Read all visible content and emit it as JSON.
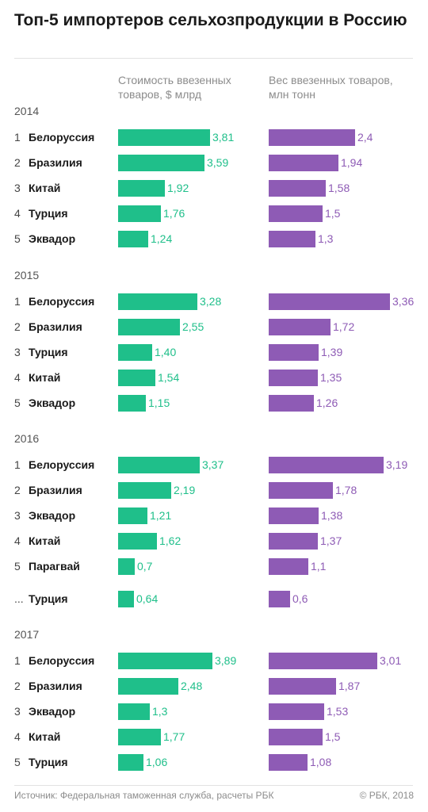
{
  "title": "Топ-5 импортеров сельхозпродукции в Россию",
  "headers": {
    "value": "Стоимость ввезенных товаров, $ млрд",
    "weight": "Вес ввезенных товаров, млн тонн"
  },
  "colors": {
    "value": "#1fbf8a",
    "weight": "#8e5bb5"
  },
  "chart_data": {
    "type": "bar",
    "title": "Топ-5 импортеров сельхозпродукции в Россию",
    "series": [
      {
        "name": "Стоимость ввезенных товаров, $ млрд",
        "key": "value"
      },
      {
        "name": "Вес ввезенных товаров, млн тонн",
        "key": "weight"
      }
    ],
    "groups": [
      {
        "year": "2014",
        "rows": [
          {
            "rank": "1",
            "country": "Белоруссия",
            "value": 3.81,
            "value_label": "3,81",
            "weight": 2.4,
            "weight_label": "2,4"
          },
          {
            "rank": "2",
            "country": "Бразилия",
            "value": 3.59,
            "value_label": "3,59",
            "weight": 1.94,
            "weight_label": "1,94"
          },
          {
            "rank": "3",
            "country": "Китай",
            "value": 1.92,
            "value_label": "1,92",
            "weight": 1.58,
            "weight_label": "1,58"
          },
          {
            "rank": "4",
            "country": "Турция",
            "value": 1.76,
            "value_label": "1,76",
            "weight": 1.5,
            "weight_label": "1,5"
          },
          {
            "rank": "5",
            "country": "Эквадор",
            "value": 1.24,
            "value_label": "1,24",
            "weight": 1.3,
            "weight_label": "1,3"
          }
        ]
      },
      {
        "year": "2015",
        "rows": [
          {
            "rank": "1",
            "country": "Белоруссия",
            "value": 3.28,
            "value_label": "3,28",
            "weight": 3.36,
            "weight_label": "3,36"
          },
          {
            "rank": "2",
            "country": "Бразилия",
            "value": 2.55,
            "value_label": "2,55",
            "weight": 1.72,
            "weight_label": "1,72"
          },
          {
            "rank": "3",
            "country": "Турция",
            "value": 1.4,
            "value_label": "1,40",
            "weight": 1.39,
            "weight_label": "1,39"
          },
          {
            "rank": "4",
            "country": "Китай",
            "value": 1.54,
            "value_label": "1,54",
            "weight": 1.35,
            "weight_label": "1,35"
          },
          {
            "rank": "5",
            "country": "Эквадор",
            "value": 1.15,
            "value_label": "1,15",
            "weight": 1.26,
            "weight_label": "1,26"
          }
        ]
      },
      {
        "year": "2016",
        "rows": [
          {
            "rank": "1",
            "country": "Белоруссия",
            "value": 3.37,
            "value_label": "3,37",
            "weight": 3.19,
            "weight_label": "3,19"
          },
          {
            "rank": "2",
            "country": "Бразилия",
            "value": 2.19,
            "value_label": "2,19",
            "weight": 1.78,
            "weight_label": "1,78"
          },
          {
            "rank": "3",
            "country": "Эквадор",
            "value": 1.21,
            "value_label": "1,21",
            "weight": 1.38,
            "weight_label": "1,38"
          },
          {
            "rank": "4",
            "country": "Китай",
            "value": 1.62,
            "value_label": "1,62",
            "weight": 1.37,
            "weight_label": "1,37"
          },
          {
            "rank": "5",
            "country": "Парагвай",
            "value": 0.7,
            "value_label": "0,7",
            "weight": 1.1,
            "weight_label": "1,1"
          },
          {
            "rank": "...",
            "country": "Турция",
            "value": 0.64,
            "value_label": "0,64",
            "weight": 0.6,
            "weight_label": "0,6"
          }
        ]
      },
      {
        "year": "2017",
        "rows": [
          {
            "rank": "1",
            "country": "Белоруссия",
            "value": 3.89,
            "value_label": "3,89",
            "weight": 3.01,
            "weight_label": "3,01"
          },
          {
            "rank": "2",
            "country": "Бразилия",
            "value": 2.48,
            "value_label": "2,48",
            "weight": 1.87,
            "weight_label": "1,87"
          },
          {
            "rank": "3",
            "country": "Эквадор",
            "value": 1.3,
            "value_label": "1,3",
            "weight": 1.53,
            "weight_label": "1,53"
          },
          {
            "rank": "4",
            "country": "Китай",
            "value": 1.77,
            "value_label": "1,77",
            "weight": 1.5,
            "weight_label": "1,5"
          },
          {
            "rank": "5",
            "country": "Турция",
            "value": 1.06,
            "value_label": "1,06",
            "weight": 1.08,
            "weight_label": "1,08"
          }
        ]
      }
    ]
  },
  "footer": {
    "source": "Источник: Федеральная таможенная служба, расчеты РБК",
    "copyright": "© РБК, 2018"
  }
}
